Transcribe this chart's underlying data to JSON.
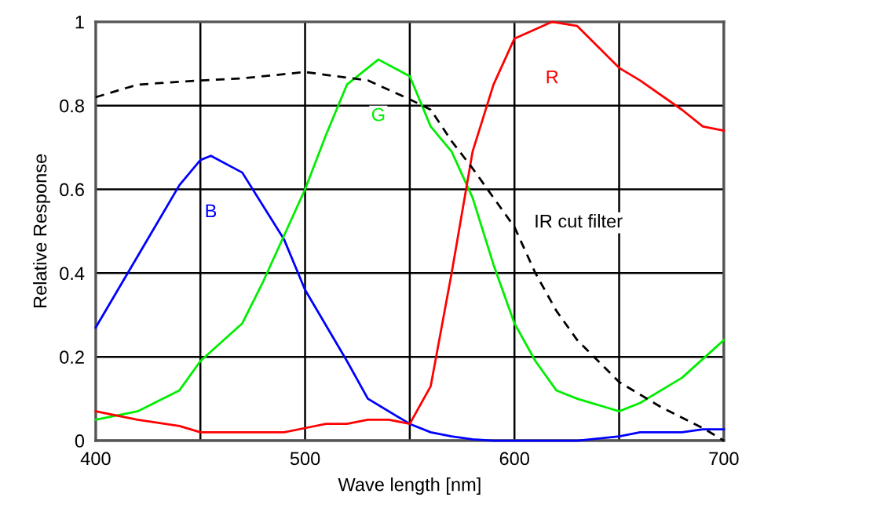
{
  "chart_data": {
    "type": "line",
    "xlabel": "Wave length [nm]",
    "ylabel": "Relative Response",
    "xlim": [
      400,
      700
    ],
    "ylim": [
      0,
      1
    ],
    "xticks": [
      400,
      {
        "value": 450,
        "label": null
      },
      500,
      {
        "value": 550,
        "label": null
      },
      600,
      {
        "value": 650,
        "label": null
      },
      700
    ],
    "yticks": [
      0,
      0.2,
      0.4,
      0.6,
      0.8,
      1
    ],
    "grid": true,
    "legend": false,
    "marker": "none",
    "series": [
      {
        "name": "B",
        "color": "#0000ff",
        "line_style": "solid",
        "x": [
          400,
          420,
          440,
          450,
          455,
          470,
          490,
          500,
          520,
          530,
          550,
          560,
          570,
          580,
          590,
          630,
          650,
          660,
          680,
          690,
          700
        ],
        "values": [
          0.27,
          0.44,
          0.61,
          0.67,
          0.68,
          0.64,
          0.48,
          0.36,
          0.19,
          0.1,
          0.04,
          0.02,
          0.01,
          0.003,
          0,
          0,
          0.01,
          0.02,
          0.02,
          0.027,
          0.027
        ]
      },
      {
        "name": "G",
        "color": "#00ee00",
        "line_style": "solid",
        "x": [
          400,
          420,
          440,
          450,
          470,
          480,
          490,
          500,
          510,
          520,
          535,
          550,
          560,
          570,
          580,
          590,
          600,
          610,
          620,
          630,
          650,
          660,
          680,
          700
        ],
        "values": [
          0.05,
          0.07,
          0.12,
          0.19,
          0.28,
          0.38,
          0.49,
          0.6,
          0.73,
          0.85,
          0.91,
          0.87,
          0.75,
          0.69,
          0.58,
          0.42,
          0.28,
          0.19,
          0.12,
          0.1,
          0.07,
          0.09,
          0.15,
          0.24
        ]
      },
      {
        "name": "R",
        "color": "#ff0000",
        "line_style": "solid",
        "x": [
          400,
          420,
          440,
          450,
          490,
          500,
          510,
          520,
          530,
          540,
          550,
          560,
          570,
          580,
          590,
          600,
          618,
          630,
          650,
          660,
          680,
          690,
          700
        ],
        "values": [
          0.07,
          0.05,
          0.035,
          0.02,
          0.02,
          0.03,
          0.04,
          0.04,
          0.05,
          0.05,
          0.04,
          0.13,
          0.4,
          0.69,
          0.85,
          0.96,
          1.0,
          0.99,
          0.89,
          0.86,
          0.79,
          0.75,
          0.74
        ]
      },
      {
        "name": "IR cut filter",
        "color": "#000000",
        "line_style": "dashed",
        "x": [
          400,
          420,
          450,
          470,
          500,
          530,
          550,
          560,
          570,
          580,
          600,
          610,
          620,
          630,
          650,
          670,
          690,
          700
        ],
        "values": [
          0.82,
          0.85,
          0.86,
          0.865,
          0.88,
          0.86,
          0.815,
          0.79,
          0.715,
          0.65,
          0.51,
          0.4,
          0.31,
          0.24,
          0.14,
          0.08,
          0.03,
          0
        ]
      }
    ]
  }
}
